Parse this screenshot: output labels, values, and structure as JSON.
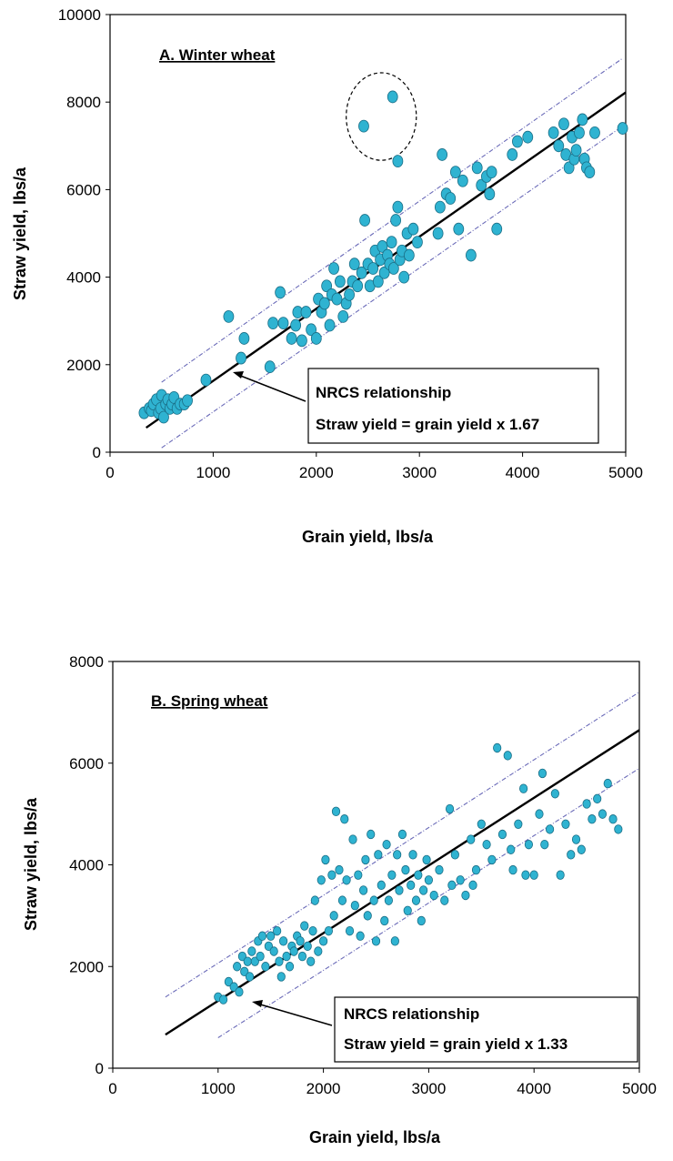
{
  "chart_data": [
    {
      "type": "scatter",
      "title": "A. Winter wheat",
      "xlabel": "Grain yield, lbs/a",
      "ylabel": "Straw yield, lbs/a",
      "xlim": [
        0,
        5000
      ],
      "ylim": [
        0,
        10000
      ],
      "xticks": [
        "0",
        "1000",
        "2000",
        "3000",
        "4000",
        "5000"
      ],
      "yticks": [
        "0",
        "2000",
        "4000",
        "6000",
        "8000",
        "10000"
      ],
      "grid": false,
      "annotation": {
        "line1": "NRCS relationship",
        "line2": "Straw yield = grain yield x 1.67"
      },
      "regression_line": {
        "x": [
          350,
          5000
        ],
        "y": [
          560,
          8220
        ]
      },
      "prediction_bands": [
        {
          "x": [
            500,
            4970
          ],
          "y": [
            1600,
            9000
          ]
        },
        {
          "x": [
            500,
            4970
          ],
          "y": [
            100,
            7450
          ]
        }
      ],
      "highlight_ellipse": {
        "cx": 2630,
        "cy": 7670,
        "rx": 340,
        "ry": 1000
      },
      "series": [
        {
          "color": "#2fb3d1",
          "points": [
            [
              330,
              900
            ],
            [
              380,
              1000
            ],
            [
              400,
              950
            ],
            [
              420,
              1100
            ],
            [
              450,
              1200
            ],
            [
              470,
              900
            ],
            [
              490,
              1000
            ],
            [
              500,
              1300
            ],
            [
              520,
              800
            ],
            [
              540,
              1100
            ],
            [
              560,
              1200
            ],
            [
              580,
              1000
            ],
            [
              600,
              1100
            ],
            [
              620,
              1250
            ],
            [
              650,
              1000
            ],
            [
              680,
              1100
            ],
            [
              720,
              1100
            ],
            [
              750,
              1180
            ],
            [
              930,
              1650
            ],
            [
              1150,
              3100
            ],
            [
              1270,
              2150
            ],
            [
              1300,
              2600
            ],
            [
              1550,
              1950
            ],
            [
              1580,
              2950
            ],
            [
              1650,
              3650
            ],
            [
              1680,
              2950
            ],
            [
              1760,
              2600
            ],
            [
              1800,
              2900
            ],
            [
              1820,
              3200
            ],
            [
              1860,
              2550
            ],
            [
              1900,
              3200
            ],
            [
              1950,
              2800
            ],
            [
              2000,
              2600
            ],
            [
              2020,
              3500
            ],
            [
              2050,
              3200
            ],
            [
              2080,
              3400
            ],
            [
              2100,
              3800
            ],
            [
              2130,
              2900
            ],
            [
              2150,
              3600
            ],
            [
              2170,
              4200
            ],
            [
              2200,
              3500
            ],
            [
              2230,
              3900
            ],
            [
              2260,
              3100
            ],
            [
              2290,
              3400
            ],
            [
              2320,
              3600
            ],
            [
              2350,
              3900
            ],
            [
              2370,
              4300
            ],
            [
              2400,
              3800
            ],
            [
              2440,
              4100
            ],
            [
              2470,
              5300
            ],
            [
              2500,
              4300
            ],
            [
              2520,
              3800
            ],
            [
              2550,
              4200
            ],
            [
              2570,
              4600
            ],
            [
              2600,
              3900
            ],
            [
              2620,
              4400
            ],
            [
              2640,
              4700
            ],
            [
              2660,
              4100
            ],
            [
              2690,
              4500
            ],
            [
              2710,
              4300
            ],
            [
              2730,
              4800
            ],
            [
              2750,
              4200
            ],
            [
              2770,
              5300
            ],
            [
              2790,
              5600
            ],
            [
              2810,
              4400
            ],
            [
              2830,
              4600
            ],
            [
              2850,
              4000
            ],
            [
              2880,
              5000
            ],
            [
              2900,
              4500
            ],
            [
              2940,
              5100
            ],
            [
              2980,
              4800
            ],
            [
              2460,
              7450
            ],
            [
              2740,
              8120
            ],
            [
              2790,
              6650
            ],
            [
              3180,
              5000
            ],
            [
              3200,
              5600
            ],
            [
              3220,
              6800
            ],
            [
              3260,
              5900
            ],
            [
              3300,
              5800
            ],
            [
              3350,
              6400
            ],
            [
              3380,
              5100
            ],
            [
              3420,
              6200
            ],
            [
              3500,
              4500
            ],
            [
              3560,
              6500
            ],
            [
              3600,
              6100
            ],
            [
              3650,
              6300
            ],
            [
              3680,
              5900
            ],
            [
              3700,
              6400
            ],
            [
              3750,
              5100
            ],
            [
              3900,
              6800
            ],
            [
              3950,
              7100
            ],
            [
              4050,
              7200
            ],
            [
              4300,
              7300
            ],
            [
              4350,
              7000
            ],
            [
              4400,
              7500
            ],
            [
              4420,
              6800
            ],
            [
              4450,
              6500
            ],
            [
              4480,
              7200
            ],
            [
              4500,
              6700
            ],
            [
              4520,
              6900
            ],
            [
              4550,
              7300
            ],
            [
              4580,
              7600
            ],
            [
              4600,
              6700
            ],
            [
              4620,
              6500
            ],
            [
              4650,
              6400
            ],
            [
              4700,
              7300
            ],
            [
              4970,
              7400
            ]
          ]
        }
      ]
    },
    {
      "type": "scatter",
      "title": "B.  Spring wheat",
      "xlabel": "Grain yield, lbs/a",
      "ylabel": "Straw yield, lbs/a",
      "xlim": [
        0,
        5000
      ],
      "ylim": [
        0,
        8000
      ],
      "xticks": [
        "0",
        "1000",
        "2000",
        "3000",
        "4000",
        "5000"
      ],
      "yticks": [
        "0",
        "2000",
        "4000",
        "6000",
        "8000"
      ],
      "grid": false,
      "annotation": {
        "line1": "NRCS relationship",
        "line2": "Straw yield = grain yield x 1.33"
      },
      "regression_line": {
        "x": [
          500,
          5000
        ],
        "y": [
          660,
          6650
        ]
      },
      "prediction_bands": [
        {
          "x": [
            500,
            5000
          ],
          "y": [
            1400,
            7400
          ]
        },
        {
          "x": [
            1000,
            5000
          ],
          "y": [
            600,
            5900
          ]
        }
      ],
      "series": [
        {
          "color": "#2fb3d1",
          "points": [
            [
              1000,
              1400
            ],
            [
              1050,
              1350
            ],
            [
              1100,
              1700
            ],
            [
              1150,
              1600
            ],
            [
              1180,
              2000
            ],
            [
              1200,
              1500
            ],
            [
              1230,
              2200
            ],
            [
              1250,
              1900
            ],
            [
              1280,
              2100
            ],
            [
              1300,
              1800
            ],
            [
              1320,
              2300
            ],
            [
              1350,
              2100
            ],
            [
              1380,
              2500
            ],
            [
              1400,
              2200
            ],
            [
              1420,
              2600
            ],
            [
              1450,
              2000
            ],
            [
              1480,
              2400
            ],
            [
              1500,
              2600
            ],
            [
              1530,
              2300
            ],
            [
              1560,
              2700
            ],
            [
              1580,
              2100
            ],
            [
              1600,
              1800
            ],
            [
              1620,
              2500
            ],
            [
              1650,
              2200
            ],
            [
              1680,
              2000
            ],
            [
              1700,
              2400
            ],
            [
              1720,
              2300
            ],
            [
              1750,
              2600
            ],
            [
              1780,
              2500
            ],
            [
              1800,
              2200
            ],
            [
              1820,
              2800
            ],
            [
              1850,
              2400
            ],
            [
              1880,
              2100
            ],
            [
              1900,
              2700
            ],
            [
              1920,
              3300
            ],
            [
              1950,
              2300
            ],
            [
              1980,
              3700
            ],
            [
              2000,
              2500
            ],
            [
              2020,
              4100
            ],
            [
              2050,
              2700
            ],
            [
              2080,
              3800
            ],
            [
              2100,
              3000
            ],
            [
              2120,
              5050
            ],
            [
              2150,
              3900
            ],
            [
              2180,
              3300
            ],
            [
              2200,
              4900
            ],
            [
              2220,
              3700
            ],
            [
              2250,
              2700
            ],
            [
              2280,
              4500
            ],
            [
              2300,
              3200
            ],
            [
              2330,
              3800
            ],
            [
              2350,
              2600
            ],
            [
              2380,
              3500
            ],
            [
              2400,
              4100
            ],
            [
              2420,
              3000
            ],
            [
              2450,
              4600
            ],
            [
              2480,
              3300
            ],
            [
              2500,
              2500
            ],
            [
              2520,
              4200
            ],
            [
              2550,
              3600
            ],
            [
              2580,
              2900
            ],
            [
              2600,
              4400
            ],
            [
              2620,
              3300
            ],
            [
              2650,
              3800
            ],
            [
              2680,
              2500
            ],
            [
              2700,
              4200
            ],
            [
              2720,
              3500
            ],
            [
              2750,
              4600
            ],
            [
              2780,
              3900
            ],
            [
              2800,
              3100
            ],
            [
              2830,
              3600
            ],
            [
              2850,
              4200
            ],
            [
              2880,
              3300
            ],
            [
              2900,
              3800
            ],
            [
              2930,
              2900
            ],
            [
              2950,
              3500
            ],
            [
              2980,
              4100
            ],
            [
              3000,
              3700
            ],
            [
              3050,
              3400
            ],
            [
              3100,
              3900
            ],
            [
              3150,
              3300
            ],
            [
              3200,
              5100
            ],
            [
              3220,
              3600
            ],
            [
              3250,
              4200
            ],
            [
              3300,
              3700
            ],
            [
              3350,
              3400
            ],
            [
              3400,
              4500
            ],
            [
              3420,
              3600
            ],
            [
              3450,
              3900
            ],
            [
              3500,
              4800
            ],
            [
              3550,
              4400
            ],
            [
              3600,
              4100
            ],
            [
              3650,
              6300
            ],
            [
              3700,
              4600
            ],
            [
              3750,
              6150
            ],
            [
              3780,
              4300
            ],
            [
              3800,
              3900
            ],
            [
              3850,
              4800
            ],
            [
              3900,
              5500
            ],
            [
              3920,
              3800
            ],
            [
              3950,
              4400
            ],
            [
              4000,
              3800
            ],
            [
              4050,
              5000
            ],
            [
              4080,
              5800
            ],
            [
              4100,
              4400
            ],
            [
              4150,
              4700
            ],
            [
              4200,
              5400
            ],
            [
              4250,
              3800
            ],
            [
              4300,
              4800
            ],
            [
              4350,
              4200
            ],
            [
              4400,
              4500
            ],
            [
              4450,
              4300
            ],
            [
              4500,
              5200
            ],
            [
              4550,
              4900
            ],
            [
              4600,
              5300
            ],
            [
              4650,
              5000
            ],
            [
              4700,
              5600
            ],
            [
              4750,
              4900
            ],
            [
              4800,
              4700
            ]
          ]
        }
      ]
    }
  ]
}
